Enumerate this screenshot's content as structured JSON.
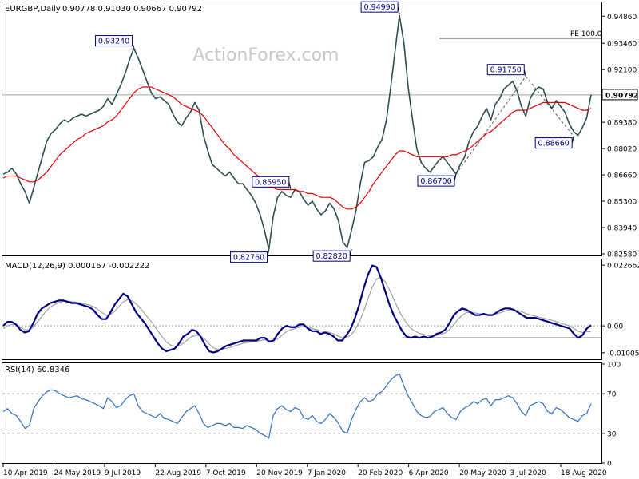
{
  "chart_data": [
    {
      "type": "line",
      "panel": "price",
      "header": {
        "symbol": "EURGBP,Daily",
        "ohlc": "0.90778 0.91030 0.90667 0.90792"
      },
      "watermark": "ActionForex.com",
      "ylim": [
        0.8258,
        0.9545
      ],
      "y_ticks": [
        "0.94860",
        "0.93460",
        "0.92100",
        "0.89380",
        "0.88020",
        "0.86660",
        "0.85300",
        "0.83940",
        "0.82580"
      ],
      "last_price_label": "0.90792",
      "last_price": 0.90792,
      "fe_line": {
        "label": "FE 100.0",
        "value": 0.9372
      },
      "annotations": [
        {
          "label": "0.93240",
          "value": 0.9324
        },
        {
          "label": "0.82760",
          "value": 0.8276
        },
        {
          "label": "0.85950",
          "value": 0.8595
        },
        {
          "label": "0.82820",
          "value": 0.8282
        },
        {
          "label": "0.94990",
          "value": 0.9499
        },
        {
          "label": "0.86700",
          "value": 0.867
        },
        {
          "label": "0.91750",
          "value": 0.9175
        },
        {
          "label": "0.88660",
          "value": 0.8866
        }
      ],
      "series": [
        {
          "kind": "price",
          "color": "#2f4f4f",
          "values": [
            0.867,
            0.868,
            0.87,
            0.867,
            0.862,
            0.858,
            0.852,
            0.86,
            0.868,
            0.876,
            0.884,
            0.888,
            0.89,
            0.893,
            0.895,
            0.894,
            0.896,
            0.897,
            0.898,
            0.897,
            0.898,
            0.899,
            0.9,
            0.902,
            0.906,
            0.903,
            0.908,
            0.913,
            0.919,
            0.926,
            0.932,
            0.927,
            0.921,
            0.915,
            0.909,
            0.906,
            0.907,
            0.905,
            0.903,
            0.898,
            0.894,
            0.892,
            0.896,
            0.899,
            0.904,
            0.9,
            0.887,
            0.879,
            0.872,
            0.87,
            0.868,
            0.866,
            0.868,
            0.865,
            0.862,
            0.862,
            0.859,
            0.856,
            0.852,
            0.846,
            0.838,
            0.828,
            0.845,
            0.855,
            0.858,
            0.856,
            0.855,
            0.859,
            0.858,
            0.854,
            0.851,
            0.853,
            0.849,
            0.846,
            0.848,
            0.852,
            0.849,
            0.843,
            0.832,
            0.829,
            0.838,
            0.848,
            0.862,
            0.873,
            0.874,
            0.876,
            0.881,
            0.885,
            0.895,
            0.912,
            0.931,
            0.949,
            0.935,
            0.912,
            0.895,
            0.88,
            0.873,
            0.87,
            0.868,
            0.871,
            0.874,
            0.876,
            0.873,
            0.87,
            0.867,
            0.872,
            0.876,
            0.884,
            0.889,
            0.892,
            0.897,
            0.901,
            0.895,
            0.903,
            0.906,
            0.911,
            0.913,
            0.915,
            0.91,
            0.902,
            0.897,
            0.906,
            0.91,
            0.912,
            0.911,
            0.904,
            0.901,
            0.905,
            0.902,
            0.899,
            0.893,
            0.889,
            0.887,
            0.891,
            0.896,
            0.908
          ]
        },
        {
          "kind": "ma",
          "color": "#e00000",
          "values": [
            0.865,
            0.866,
            0.866,
            0.866,
            0.865,
            0.864,
            0.863,
            0.863,
            0.864,
            0.866,
            0.868,
            0.871,
            0.874,
            0.877,
            0.879,
            0.881,
            0.883,
            0.885,
            0.886,
            0.888,
            0.889,
            0.89,
            0.891,
            0.892,
            0.894,
            0.895,
            0.897,
            0.9,
            0.903,
            0.906,
            0.909,
            0.911,
            0.912,
            0.912,
            0.912,
            0.911,
            0.91,
            0.909,
            0.908,
            0.907,
            0.905,
            0.903,
            0.902,
            0.901,
            0.9,
            0.899,
            0.897,
            0.894,
            0.891,
            0.888,
            0.885,
            0.882,
            0.88,
            0.877,
            0.875,
            0.873,
            0.871,
            0.869,
            0.867,
            0.865,
            0.863,
            0.86,
            0.86,
            0.859,
            0.859,
            0.859,
            0.859,
            0.859,
            0.858,
            0.858,
            0.857,
            0.857,
            0.856,
            0.855,
            0.855,
            0.855,
            0.854,
            0.852,
            0.85,
            0.849,
            0.849,
            0.85,
            0.852,
            0.855,
            0.858,
            0.862,
            0.865,
            0.868,
            0.871,
            0.874,
            0.877,
            0.879,
            0.879,
            0.878,
            0.877,
            0.876,
            0.876,
            0.876,
            0.876,
            0.876,
            0.876,
            0.876,
            0.876,
            0.877,
            0.877,
            0.878,
            0.879,
            0.88,
            0.882,
            0.884,
            0.886,
            0.888,
            0.889,
            0.891,
            0.893,
            0.895,
            0.897,
            0.899,
            0.9,
            0.9,
            0.9,
            0.901,
            0.902,
            0.903,
            0.904,
            0.904,
            0.904,
            0.904,
            0.904,
            0.904,
            0.903,
            0.902,
            0.901,
            0.9,
            0.9,
            0.901
          ]
        }
      ]
    },
    {
      "type": "line",
      "panel": "macd",
      "header": "MACD(12,26,9) 0.000167 -0.002222",
      "ylim": [
        -0.0125,
        0.0245
      ],
      "y_ticks": [
        "0.022662",
        "0.00",
        "-0.010052"
      ],
      "last_value_label": "0.00",
      "hline": {
        "value": -0.0045
      },
      "series": [
        {
          "kind": "macd",
          "color": "#000080",
          "values": [
            0.0,
            0.0015,
            0.0015,
            0.0005,
            -0.0015,
            -0.0025,
            -0.002,
            0.001,
            0.0045,
            0.0065,
            0.0075,
            0.0085,
            0.009,
            0.0095,
            0.0095,
            0.009,
            0.0085,
            0.0085,
            0.008,
            0.0075,
            0.007,
            0.006,
            0.004,
            0.0025,
            0.0025,
            0.005,
            0.008,
            0.01,
            0.012,
            0.011,
            0.008,
            0.005,
            0.003,
            0.001,
            -0.0015,
            -0.004,
            -0.0065,
            -0.0085,
            -0.0095,
            -0.009,
            -0.0085,
            -0.0065,
            -0.004,
            -0.003,
            -0.0015,
            -0.002,
            -0.004,
            -0.007,
            -0.0095,
            -0.01,
            -0.0095,
            -0.0085,
            -0.0075,
            -0.007,
            -0.0065,
            -0.006,
            -0.0055,
            -0.0055,
            -0.0055,
            -0.0055,
            -0.0045,
            -0.0045,
            -0.006,
            -0.0055,
            -0.003,
            -0.001,
            -0.0,
            -0.0005,
            -0.0005,
            0.0005,
            0.0005,
            -0.001,
            -0.002,
            -0.002,
            -0.003,
            -0.0025,
            -0.003,
            -0.004,
            -0.0055,
            -0.0055,
            -0.0035,
            -0.001,
            0.003,
            0.008,
            0.014,
            0.019,
            0.0225,
            0.022,
            0.018,
            0.013,
            0.008,
            0.004,
            0.001,
            -0.002,
            -0.004,
            -0.0045,
            -0.004,
            -0.0045,
            -0.004,
            -0.0045,
            -0.004,
            -0.003,
            -0.0025,
            -0.0015,
            0.001,
            0.004,
            0.0055,
            0.0065,
            0.006,
            0.005,
            0.004,
            0.004,
            0.0045,
            0.004,
            0.004,
            0.005,
            0.006,
            0.0065,
            0.0065,
            0.006,
            0.005,
            0.004,
            0.003,
            0.003,
            0.003,
            0.0025,
            0.002,
            0.0015,
            0.001,
            0.0005,
            0.0,
            -0.0005,
            -0.001,
            -0.003,
            -0.0045,
            -0.0035,
            -0.001,
            0.0002
          ]
        },
        {
          "kind": "signal",
          "color": "#a0a0a0",
          "values": [
            -0.001,
            0.0,
            0.0005,
            0.0005,
            -0.0005,
            -0.0015,
            -0.0015,
            -0.0005,
            0.0015,
            0.0035,
            0.0055,
            0.007,
            0.008,
            0.0088,
            0.0092,
            0.0092,
            0.009,
            0.0088,
            0.0085,
            0.0082,
            0.0078,
            0.0072,
            0.0062,
            0.005,
            0.004,
            0.0042,
            0.0055,
            0.0072,
            0.009,
            0.0098,
            0.0094,
            0.0082,
            0.0065,
            0.0045,
            0.0025,
            0.0005,
            -0.0018,
            -0.004,
            -0.006,
            -0.0072,
            -0.0078,
            -0.0075,
            -0.0065,
            -0.0052,
            -0.004,
            -0.0035,
            -0.0038,
            -0.005,
            -0.0068,
            -0.0082,
            -0.0088,
            -0.0088,
            -0.0084,
            -0.008,
            -0.0075,
            -0.007,
            -0.0065,
            -0.0062,
            -0.006,
            -0.0058,
            -0.0055,
            -0.0052,
            -0.0055,
            -0.0055,
            -0.0048,
            -0.0035,
            -0.0022,
            -0.0015,
            -0.001,
            -0.0005,
            -0.0002,
            -0.0005,
            -0.001,
            -0.0014,
            -0.0019,
            -0.0021,
            -0.0024,
            -0.003,
            -0.0038,
            -0.0045,
            -0.0043,
            -0.0035,
            -0.0015,
            0.0015,
            0.0055,
            0.01,
            0.0145,
            0.0175,
            0.018,
            0.0165,
            0.0135,
            0.01,
            0.0065,
            0.0035,
            0.001,
            -0.001,
            -0.002,
            -0.0028,
            -0.0032,
            -0.0036,
            -0.0038,
            -0.0036,
            -0.0032,
            -0.0026,
            -0.0015,
            0.0005,
            0.0025,
            0.004,
            0.005,
            0.005,
            0.0048,
            0.0045,
            0.0045,
            0.0043,
            0.0042,
            0.0045,
            0.005,
            0.0055,
            0.006,
            0.006,
            0.0057,
            0.0052,
            0.0045,
            0.004,
            0.0036,
            0.0032,
            0.0028,
            0.0024,
            0.002,
            0.0015,
            0.001,
            0.0005,
            0.0,
            -0.001,
            -0.002,
            -0.0025,
            -0.0022,
            -0.0022
          ]
        }
      ]
    },
    {
      "type": "line",
      "panel": "rsi",
      "header": "RSI(14) 60.8346",
      "ylim": [
        0,
        100
      ],
      "y_ticks": [
        "100",
        "70",
        "30",
        "0"
      ],
      "levels": [
        70,
        30
      ],
      "series": [
        {
          "kind": "rsi",
          "color": "#3070c0",
          "values": [
            52,
            55,
            50,
            48,
            42,
            35,
            38,
            55,
            62,
            68,
            72,
            74,
            73,
            70,
            68,
            66,
            67,
            68,
            65,
            64,
            62,
            60,
            58,
            55,
            66,
            62,
            56,
            58,
            64,
            68,
            70,
            58,
            52,
            50,
            48,
            46,
            50,
            45,
            44,
            42,
            40,
            46,
            52,
            55,
            58,
            50,
            40,
            36,
            38,
            40,
            40,
            38,
            40,
            36,
            36,
            35,
            38,
            36,
            34,
            30,
            28,
            25,
            48,
            55,
            58,
            54,
            52,
            56,
            54,
            46,
            44,
            48,
            42,
            40,
            44,
            50,
            46,
            40,
            32,
            30,
            44,
            54,
            62,
            66,
            62,
            64,
            70,
            72,
            78,
            84,
            88,
            90,
            78,
            68,
            60,
            52,
            48,
            46,
            47,
            52,
            54,
            56,
            50,
            46,
            44,
            52,
            56,
            58,
            62,
            60,
            64,
            65,
            58,
            64,
            64,
            66,
            68,
            66,
            60,
            52,
            48,
            58,
            60,
            62,
            60,
            52,
            50,
            56,
            54,
            50,
            46,
            44,
            42,
            48,
            50,
            60
          ]
        }
      ]
    },
    {
      "type": "line",
      "panel": "time_axis",
      "x_ticks": [
        "10 Apr 2019",
        "24 May 2019",
        "9 Jul 2019",
        "22 Aug 2019",
        "7 Oct 2019",
        "20 Nov 2019",
        "7 Jan 2020",
        "20 Feb 2020",
        "6 Apr 2020",
        "20 May 2020",
        "3 Jul 2020",
        "18 Aug 2020"
      ]
    }
  ]
}
